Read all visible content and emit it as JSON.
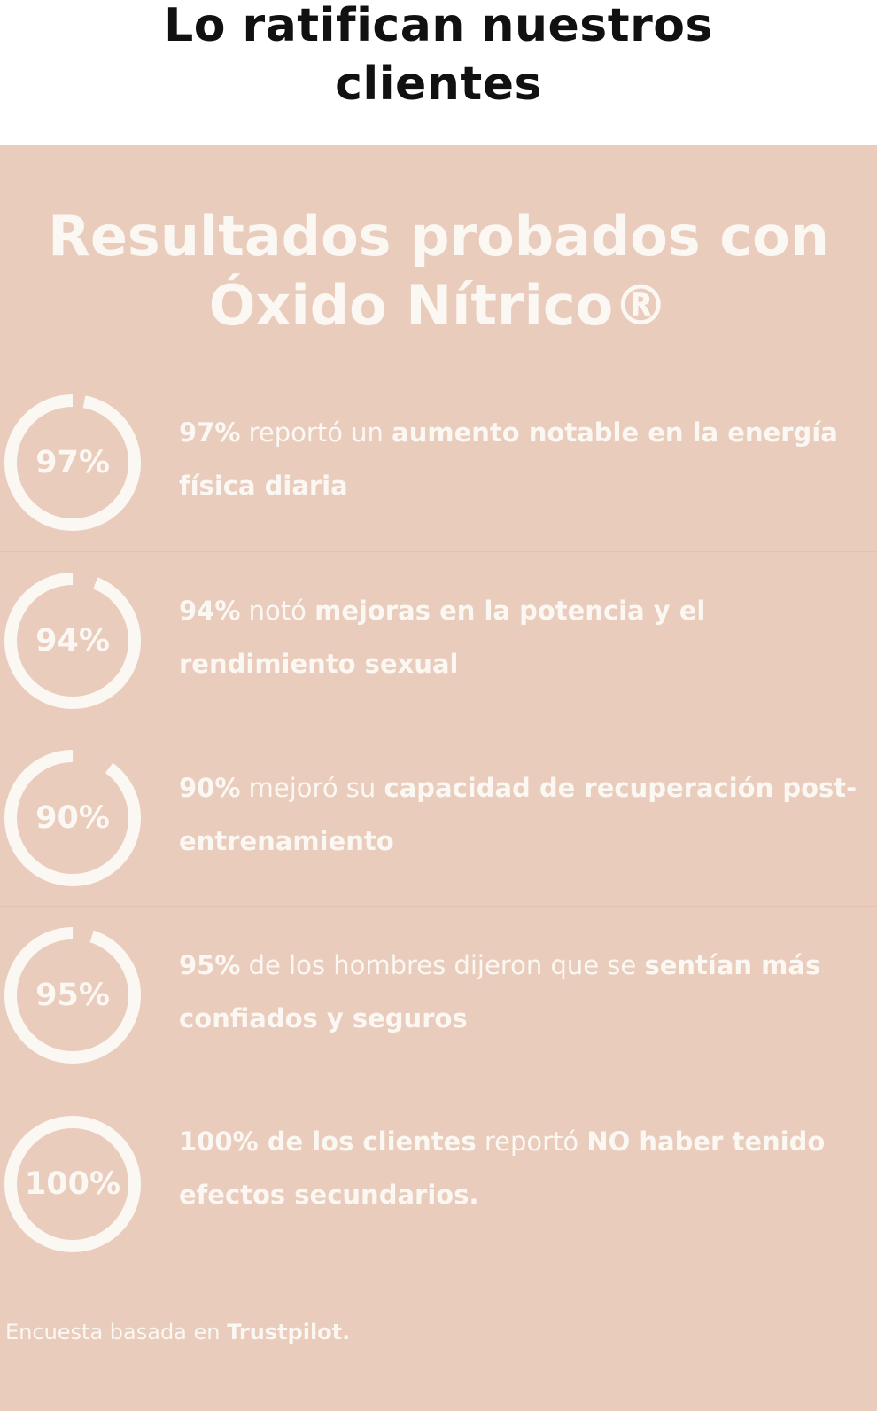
{
  "header": {
    "title": "Lo ratifican nuestros clientes"
  },
  "panel": {
    "title": "Resultados probados con Óxido Nítrico®",
    "background": "#eaccbc",
    "text_color": "#fbf7f3",
    "stats": [
      {
        "label": "97%",
        "fraction": 0.97,
        "parts": [
          {
            "text": "97%",
            "bold": true
          },
          {
            "text": " reportó un ",
            "bold": false
          },
          {
            "text": "aumento notable en la energía física diaria",
            "bold": true
          }
        ]
      },
      {
        "label": "94%",
        "fraction": 0.94,
        "parts": [
          {
            "text": "94%",
            "bold": true
          },
          {
            "text": " notó ",
            "bold": false
          },
          {
            "text": "mejoras en la potencia y el rendimiento sexual",
            "bold": true
          }
        ]
      },
      {
        "label": "90%",
        "fraction": 0.9,
        "parts": [
          {
            "text": "90%",
            "bold": true
          },
          {
            "text": " mejoró su ",
            "bold": false
          },
          {
            "text": "capacidad de recuperación post-entrenamiento",
            "bold": true
          }
        ]
      },
      {
        "label": "95%",
        "fraction": 0.95,
        "parts": [
          {
            "text": "95%",
            "bold": true
          },
          {
            "text": " de los hombres dijeron que se ",
            "bold": false
          },
          {
            "text": "sentían más confiados y seguros",
            "bold": true
          }
        ]
      },
      {
        "label": "100%",
        "fraction": 1.0,
        "parts": [
          {
            "text": "100% de los clientes",
            "bold": true
          },
          {
            "text": " reportó ",
            "bold": false
          },
          {
            "text": "NO haber tenido efectos secundarios.",
            "bold": true
          }
        ]
      }
    ],
    "footnote": {
      "parts": [
        {
          "text": "Encuesta basada en ",
          "bold": false
        },
        {
          "text": "Trustpilot.",
          "bold": true
        }
      ]
    }
  }
}
